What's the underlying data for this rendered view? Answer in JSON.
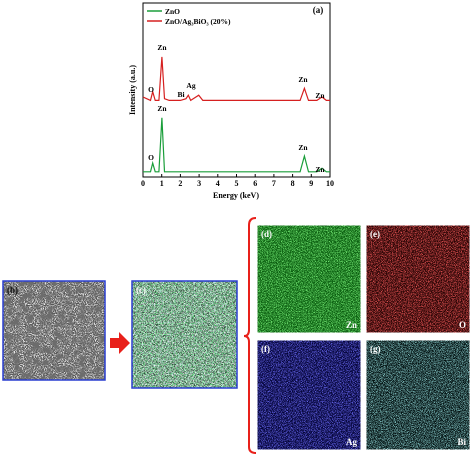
{
  "chart_data": {
    "type": "line",
    "panel_label": "(a)",
    "x_label": "Energy (keV)",
    "y_label": "Intensity (a.u.)",
    "x": [
      0,
      0.2,
      0.4,
      0.52,
      0.65,
      0.85,
      1.01,
      1.15,
      1.4,
      2.0,
      2.3,
      2.42,
      2.55,
      2.98,
      3.2,
      4,
      5,
      6,
      7,
      8,
      8.4,
      8.63,
      8.85,
      9.3,
      9.57,
      9.8,
      10
    ],
    "series": [
      {
        "name": "ZnO",
        "color": "#1a9e3a",
        "values": [
          3,
          3,
          3,
          8,
          3,
          3,
          34,
          3,
          3,
          3,
          3,
          3,
          3,
          3,
          3,
          3,
          3,
          3,
          3,
          3,
          3,
          12,
          3,
          3,
          5,
          3,
          3
        ]
      },
      {
        "name": "ZnO/Ag₃BiO₃ (20%)",
        "color": "#d62020",
        "values": [
          46,
          45,
          44,
          49,
          44,
          44,
          69,
          45,
          44,
          44,
          45,
          47,
          44,
          47,
          44,
          44,
          44,
          44,
          44,
          44,
          44,
          51,
          44,
          44,
          46,
          44,
          44
        ]
      }
    ],
    "annotations": [
      "O",
      "Zn",
      "Bi",
      "Ag",
      "Zn",
      "Zn",
      "O",
      "Zn",
      "Zn",
      "Zn"
    ],
    "xlim": [
      0,
      10
    ],
    "ylim": [
      0,
      100
    ],
    "xticks": [
      0,
      1,
      2,
      3,
      4,
      5,
      6,
      7,
      8,
      9,
      10
    ]
  },
  "images": [
    {
      "label": "(b)"
    },
    {
      "label": "(c)"
    },
    {
      "label": "(d)",
      "element": "Zn"
    },
    {
      "label": "(e)",
      "element": "O"
    },
    {
      "label": "(f)",
      "element": "Ag"
    },
    {
      "label": "(g)",
      "element": "Bi"
    }
  ]
}
